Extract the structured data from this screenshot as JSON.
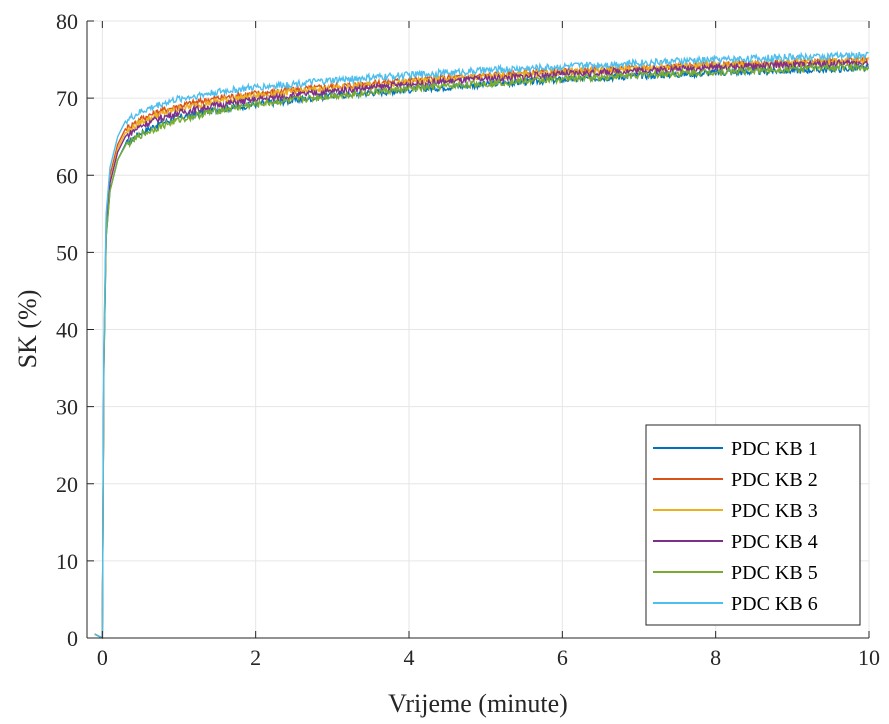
{
  "chart_data": {
    "type": "line",
    "xlabel": "Vrijeme (minute)",
    "ylabel": "SK (%)",
    "xlim": [
      -0.2,
      10
    ],
    "ylim": [
      0,
      80
    ],
    "xticks": [
      0,
      2,
      4,
      6,
      8,
      10
    ],
    "yticks": [
      0,
      10,
      20,
      30,
      40,
      50,
      60,
      70,
      80
    ],
    "xtick_labels": [
      "0",
      "2",
      "4",
      "6",
      "8",
      "10"
    ],
    "ytick_labels": [
      "0",
      "10",
      "20",
      "30",
      "40",
      "50",
      "60",
      "70",
      "80"
    ],
    "grid": true,
    "legend_position": "bottom-right",
    "series": [
      {
        "name": "PDC KB 1",
        "color": "#0072BD",
        "x": [
          -0.1,
          0,
          0.02,
          0.05,
          0.1,
          0.2,
          0.3,
          0.5,
          0.75,
          1,
          1.5,
          2,
          3,
          4,
          5,
          6,
          7,
          8,
          9,
          10
        ],
        "y": [
          0.5,
          0,
          35,
          52,
          58,
          62,
          64,
          65.5,
          66.7,
          67.5,
          68.5,
          69.2,
          70.3,
          71.1,
          71.8,
          72.4,
          72.9,
          73.3,
          73.6,
          73.9
        ]
      },
      {
        "name": "PDC KB 2",
        "color": "#D95319",
        "x": [
          -0.1,
          0,
          0.02,
          0.05,
          0.1,
          0.2,
          0.3,
          0.5,
          0.75,
          1,
          1.5,
          2,
          3,
          4,
          5,
          6,
          7,
          8,
          9,
          10
        ],
        "y": [
          0.5,
          0,
          37,
          54,
          60,
          64,
          66,
          67.3,
          68.3,
          69,
          70,
          70.6,
          71.5,
          72.3,
          72.9,
          73.4,
          73.9,
          74.3,
          74.6,
          74.9
        ]
      },
      {
        "name": "PDC KB 3",
        "color": "#EDB120",
        "x": [
          -0.1,
          0,
          0.02,
          0.05,
          0.1,
          0.2,
          0.3,
          0.5,
          0.75,
          1,
          1.5,
          2,
          3,
          4,
          5,
          6,
          7,
          8,
          9,
          10
        ],
        "y": [
          0.5,
          0,
          36,
          53,
          59,
          63.5,
          65.5,
          66.9,
          67.9,
          68.6,
          69.6,
          70.3,
          71.3,
          72.1,
          72.8,
          73.4,
          73.9,
          74.3,
          74.6,
          74.9
        ]
      },
      {
        "name": "PDC KB 4",
        "color": "#7E2F8E",
        "x": [
          -0.1,
          0,
          0.02,
          0.05,
          0.1,
          0.2,
          0.3,
          0.5,
          0.75,
          1,
          1.5,
          2,
          3,
          4,
          5,
          6,
          7,
          8,
          9,
          10
        ],
        "y": [
          0.5,
          0,
          36,
          53,
          59,
          63,
          65,
          66.4,
          67.4,
          68.1,
          69.1,
          69.8,
          70.9,
          71.8,
          72.5,
          73.1,
          73.6,
          74,
          74.3,
          74.6
        ]
      },
      {
        "name": "PDC KB 5",
        "color": "#77AC30",
        "x": [
          -0.1,
          0,
          0.02,
          0.05,
          0.1,
          0.2,
          0.3,
          0.5,
          0.75,
          1,
          1.5,
          2,
          3,
          4,
          5,
          6,
          7,
          8,
          9,
          10
        ],
        "y": [
          0.5,
          0,
          35,
          52,
          58,
          62,
          63.8,
          65.2,
          66.3,
          67.2,
          68.4,
          69.2,
          70.3,
          71.2,
          71.9,
          72.5,
          73,
          73.4,
          73.8,
          74.1
        ]
      },
      {
        "name": "PDC KB 6",
        "color": "#4DBEEE",
        "x": [
          -0.1,
          0,
          0.02,
          0.05,
          0.1,
          0.2,
          0.3,
          0.5,
          0.75,
          1,
          1.5,
          2,
          3,
          4,
          5,
          6,
          7,
          8,
          9,
          10
        ],
        "y": [
          0.5,
          0,
          38,
          55,
          61,
          65,
          67,
          68.2,
          69.2,
          69.9,
          70.8,
          71.4,
          72.3,
          73,
          73.6,
          74.1,
          74.6,
          75,
          75.3,
          75.6
        ]
      }
    ]
  }
}
